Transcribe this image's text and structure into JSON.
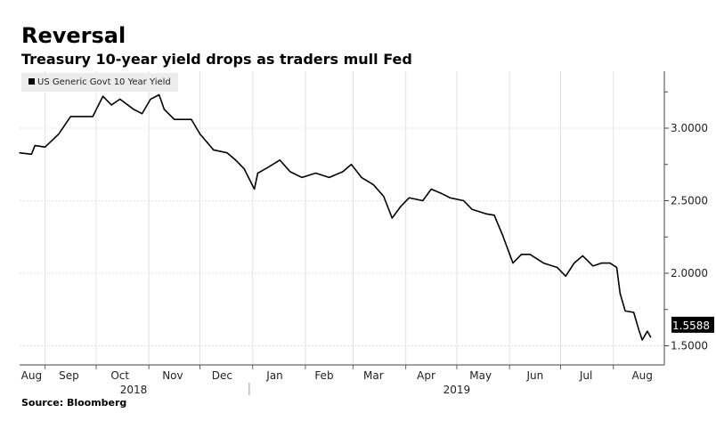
{
  "title": "Reversal",
  "subtitle": "Treasury 10-year yield drops as traders mull Fed",
  "source": "Source: Bloomberg",
  "chart_data": {
    "type": "line",
    "title": "Reversal",
    "subtitle": "Treasury 10-year yield drops as traders mull Fed",
    "xlabel": "",
    "ylabel": "",
    "x_units": "days since 2018-08-17",
    "xlim": [
      0,
      379
    ],
    "ylim": [
      1.35,
      3.4
    ],
    "grid": true,
    "legend": "top-left",
    "series": [
      {
        "name": "US Generic Govt 10 Year Yield",
        "color": "#000000",
        "points": [
          [
            0,
            2.83
          ],
          [
            7,
            2.82
          ],
          [
            9,
            2.88
          ],
          [
            15,
            2.87
          ],
          [
            23,
            2.96
          ],
          [
            30,
            3.08
          ],
          [
            38,
            3.08
          ],
          [
            43,
            3.08
          ],
          [
            49,
            3.22
          ],
          [
            54,
            3.16
          ],
          [
            59,
            3.2
          ],
          [
            67,
            3.13
          ],
          [
            72,
            3.1
          ],
          [
            77,
            3.2
          ],
          [
            82,
            3.23
          ],
          [
            85,
            3.13
          ],
          [
            91,
            3.06
          ],
          [
            101,
            3.06
          ],
          [
            106,
            2.96
          ],
          [
            114,
            2.85
          ],
          [
            122,
            2.83
          ],
          [
            127,
            2.78
          ],
          [
            132,
            2.72
          ],
          [
            138,
            2.58
          ],
          [
            140,
            2.69
          ],
          [
            146,
            2.73
          ],
          [
            153,
            2.78
          ],
          [
            159,
            2.7
          ],
          [
            166,
            2.66
          ],
          [
            174,
            2.69
          ],
          [
            182,
            2.66
          ],
          [
            190,
            2.7
          ],
          [
            195,
            2.75
          ],
          [
            201,
            2.66
          ],
          [
            208,
            2.61
          ],
          [
            214,
            2.53
          ],
          [
            219,
            2.38
          ],
          [
            224,
            2.46
          ],
          [
            229,
            2.52
          ],
          [
            237,
            2.5
          ],
          [
            242,
            2.58
          ],
          [
            248,
            2.55
          ],
          [
            253,
            2.52
          ],
          [
            261,
            2.5
          ],
          [
            266,
            2.44
          ],
          [
            274,
            2.41
          ],
          [
            279,
            2.4
          ],
          [
            284,
            2.26
          ],
          [
            290,
            2.07
          ],
          [
            295,
            2.13
          ],
          [
            300,
            2.13
          ],
          [
            308,
            2.07
          ],
          [
            316,
            2.04
          ],
          [
            321,
            1.98
          ],
          [
            326,
            2.07
          ],
          [
            331,
            2.12
          ],
          [
            337,
            2.05
          ],
          [
            342,
            2.07
          ],
          [
            347,
            2.07
          ],
          [
            351,
            2.04
          ],
          [
            353,
            1.86
          ],
          [
            356,
            1.74
          ],
          [
            361,
            1.73
          ],
          [
            364,
            1.61
          ],
          [
            366,
            1.54
          ],
          [
            369,
            1.6
          ],
          [
            371,
            1.5588
          ]
        ]
      }
    ],
    "last_value_label": "1.5588",
    "y_ticks": [
      {
        "v": 3.0,
        "label": "3.0000"
      },
      {
        "v": 2.5,
        "label": "2.5000"
      },
      {
        "v": 2.0,
        "label": "2.0000"
      },
      {
        "v": 1.5,
        "label": "1.5000"
      }
    ],
    "month_boundaries": [
      15,
      45,
      76,
      106,
      137,
      168,
      196,
      227,
      257,
      288,
      318,
      349
    ],
    "month_labels": [
      {
        "label": "Aug",
        "d": 7
      },
      {
        "label": "Sep",
        "d": 29
      },
      {
        "label": "Oct",
        "d": 59
      },
      {
        "label": "Nov",
        "d": 90
      },
      {
        "label": "Dec",
        "d": 119
      },
      {
        "label": "Jan",
        "d": 150
      },
      {
        "label": "Feb",
        "d": 179
      },
      {
        "label": "Mar",
        "d": 208
      },
      {
        "label": "Apr",
        "d": 239
      },
      {
        "label": "May",
        "d": 271
      },
      {
        "label": "Jun",
        "d": 303
      },
      {
        "label": "Jul",
        "d": 333
      },
      {
        "label": "Aug",
        "d": 366
      }
    ],
    "year_labels": [
      {
        "label": "2018",
        "d": 67
      },
      {
        "label": "2019",
        "d": 257
      }
    ],
    "year_boundary": 135
  }
}
